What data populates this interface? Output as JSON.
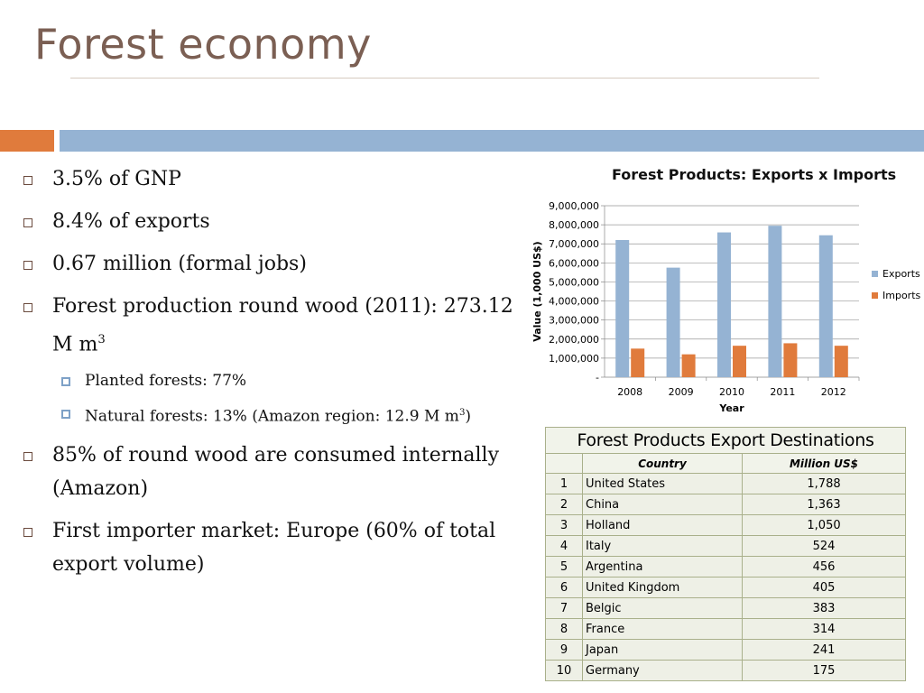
{
  "slide": {
    "title": "Forest economy"
  },
  "bullets": [
    {
      "text": "3.5%  of GNP",
      "level": 1
    },
    {
      "text": "8.4%  of exports",
      "level": 1
    },
    {
      "text": "0.67 million (formal jobs)",
      "level": 1
    },
    {
      "text": "Forest production round wood (2011): 273.12 M m",
      "sup": "3",
      "level": 1
    },
    {
      "text": "Planted forests: 77%",
      "level": 2
    },
    {
      "text": "Natural forests: 13% (Amazon region: 12.9 M m",
      "sup": "3",
      "tail": ")",
      "level": 2
    },
    {
      "text": "85% of round wood are consumed  internally (Amazon)",
      "level": 1
    },
    {
      "text": "First importer market: Europe (60% of  total export volume)",
      "level": 1
    }
  ],
  "chart_data": {
    "type": "bar",
    "title": "Forest Products: Exports x Imports",
    "xlabel": "Year",
    "ylabel": "Value (1,000 US$)",
    "categories": [
      "2008",
      "2009",
      "2010",
      "2011",
      "2012"
    ],
    "series": [
      {
        "name": "Exports",
        "values": [
          7200000,
          5750000,
          7600000,
          7950000,
          7450000
        ],
        "color": "#95b3d3"
      },
      {
        "name": "Imports",
        "values": [
          1500000,
          1200000,
          1650000,
          1780000,
          1650000
        ],
        "color": "#e07b3c"
      }
    ],
    "ylim": [
      0,
      9000000
    ],
    "yticks": [
      "-",
      "1,000,000",
      "2,000,000",
      "3,000,000",
      "4,000,000",
      "5,000,000",
      "6,000,000",
      "7,000,000",
      "8,000,000",
      "9,000,000"
    ],
    "grid": true,
    "legend": "right"
  },
  "table": {
    "caption": "Forest Products Export Destinations",
    "headers": [
      "Country",
      "Million US$"
    ],
    "rows": [
      {
        "rank": "1",
        "country": "United States",
        "value": "1,788"
      },
      {
        "rank": "2",
        "country": "China",
        "value": "1,363"
      },
      {
        "rank": "3",
        "country": "Holland",
        "value": "1,050"
      },
      {
        "rank": "4",
        "country": "Italy",
        "value": "524"
      },
      {
        "rank": "5",
        "country": "Argentina",
        "value": "456"
      },
      {
        "rank": "6",
        "country": "United Kingdom",
        "value": "405"
      },
      {
        "rank": "7",
        "country": "Belgic",
        "value": "383"
      },
      {
        "rank": "8",
        "country": "France",
        "value": "314"
      },
      {
        "rank": "9",
        "country": "Japan",
        "value": "241"
      },
      {
        "rank": "10",
        "country": "Germany",
        "value": "175"
      }
    ]
  }
}
